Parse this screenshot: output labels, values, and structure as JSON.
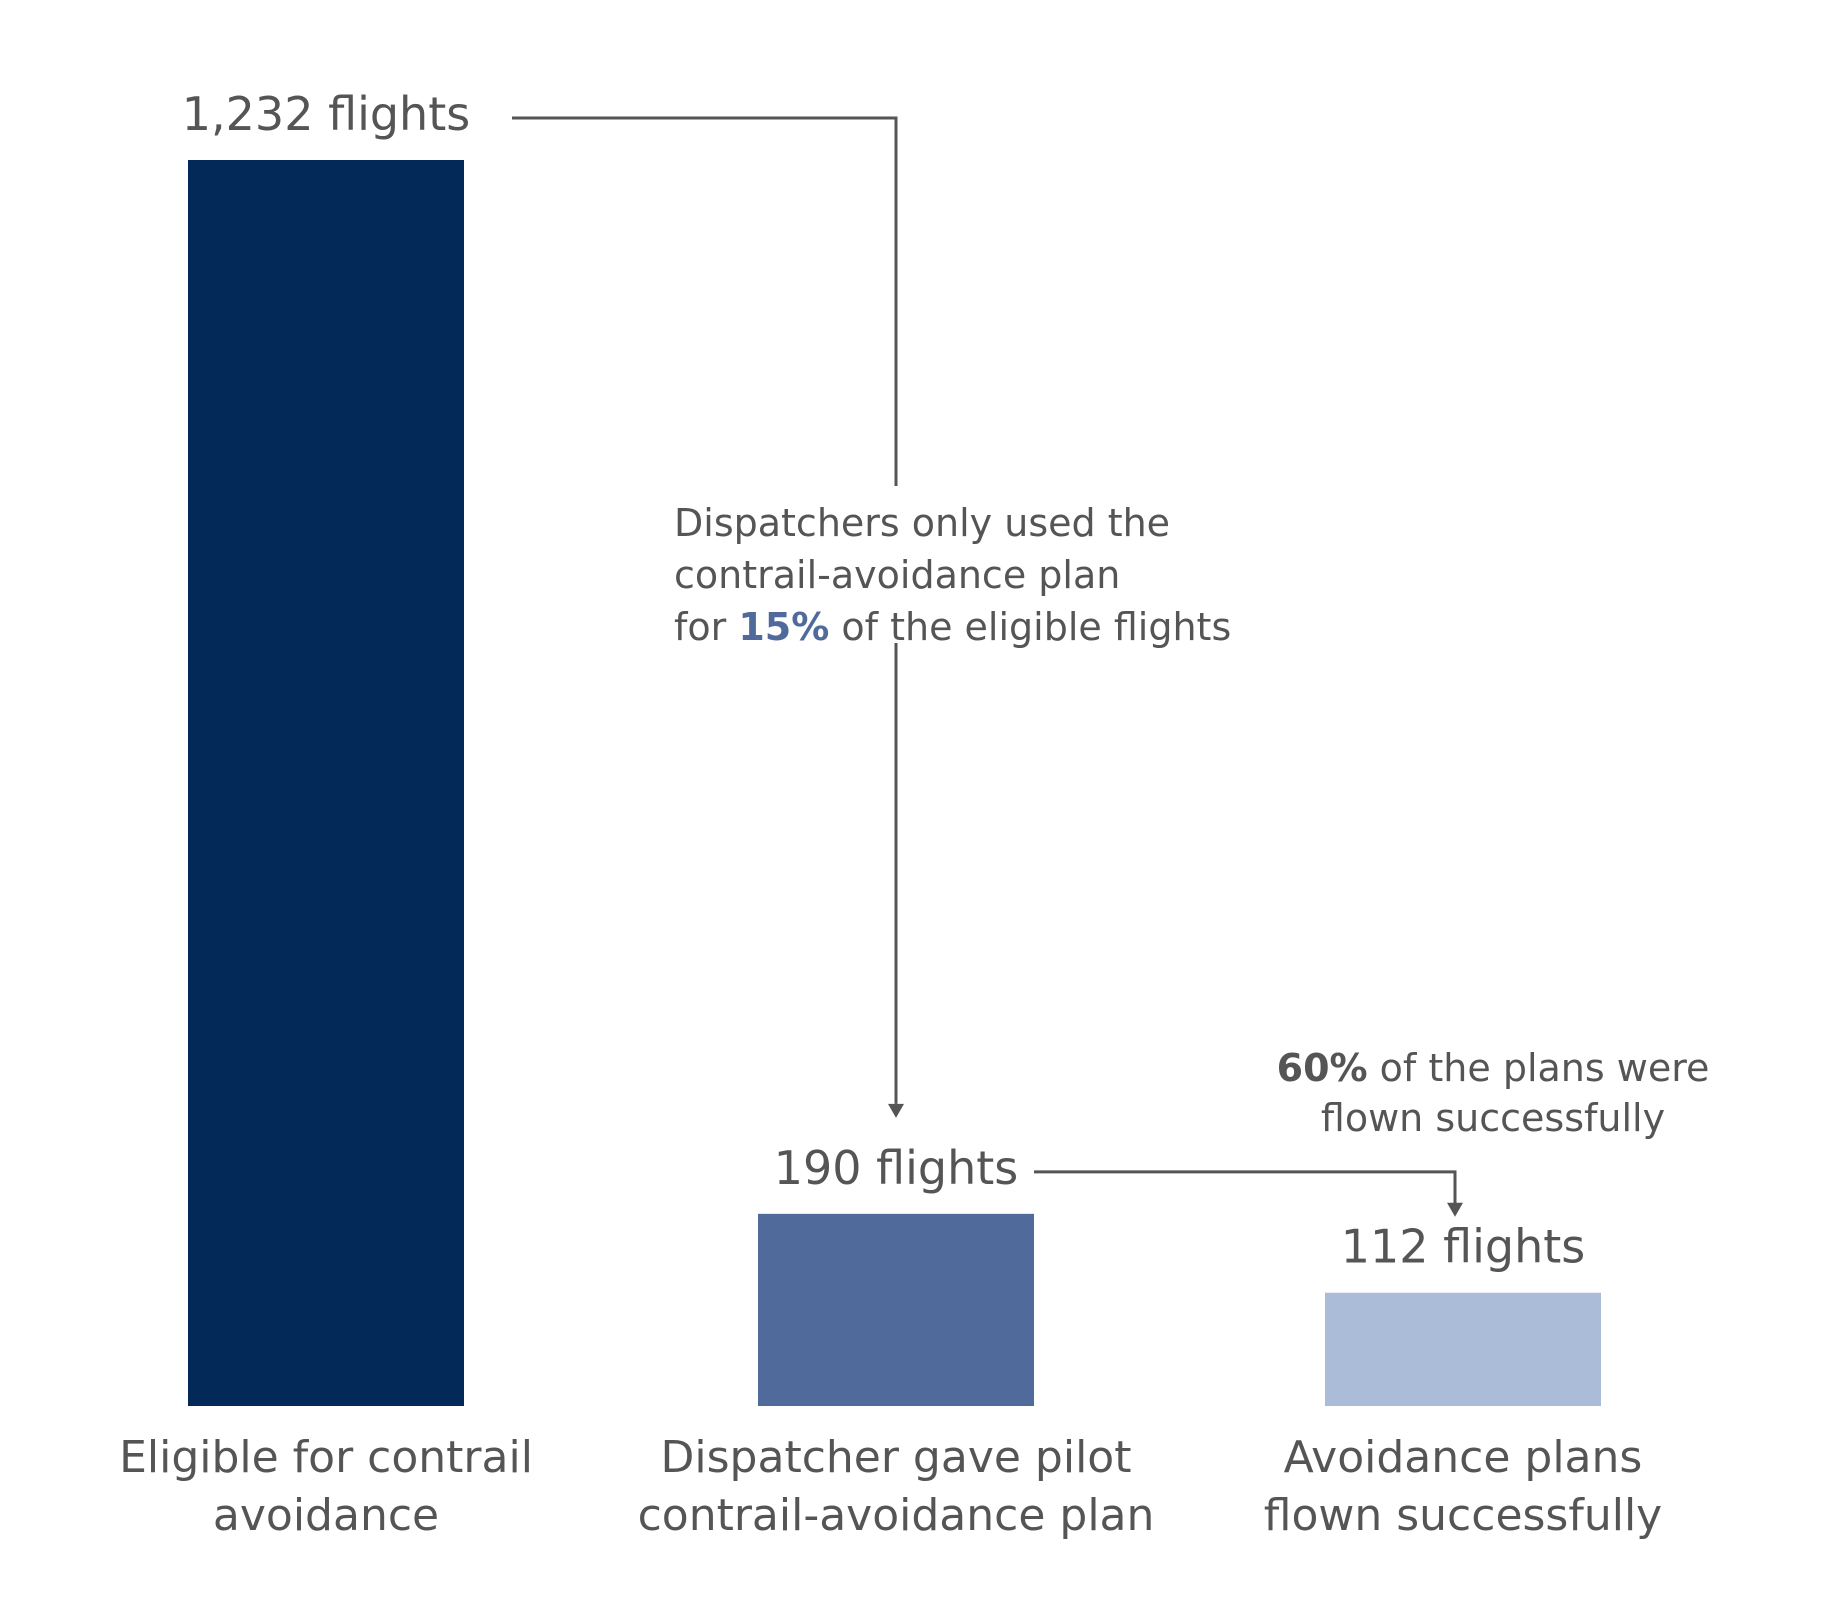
{
  "chart_data": {
    "type": "bar",
    "title": "",
    "xlabel": "",
    "ylabel": "",
    "ylim": [
      0,
      1232
    ],
    "grid": false,
    "categories": [
      [
        "Eligible for contrail",
        "avoidance"
      ],
      [
        "Dispatcher gave pilot",
        "contrail-avoidance plan"
      ],
      [
        "Avoidance plans",
        "flown successfully"
      ]
    ],
    "values": [
      1232,
      190,
      112
    ],
    "value_labels": [
      "1,232 flights",
      "190 flights",
      "112 flights"
    ],
    "colors": [
      "#032958",
      "#4f6a9b",
      "#abbcd9"
    ],
    "annotations": [
      {
        "from": 0,
        "to": 1,
        "lines": [
          [
            {
              "text": "Dispatchers only used the"
            }
          ],
          [
            {
              "text": "contrail-avoidance plan"
            }
          ],
          [
            {
              "text": "for "
            },
            {
              "text": "15%",
              "bold": true,
              "color": "#4f6a9b"
            },
            {
              "text": " of the eligible flights"
            }
          ]
        ]
      },
      {
        "from": 1,
        "to": 2,
        "lines": [
          [
            {
              "text": "60%",
              "bold": true
            },
            {
              "text": " of the plans were"
            }
          ],
          [
            {
              "text": "flown successfully"
            }
          ]
        ]
      }
    ]
  }
}
